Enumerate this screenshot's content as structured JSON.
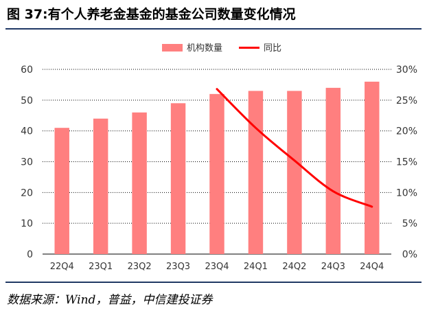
{
  "header": {
    "title": "图 37:有个人养老金基金的基金公司数量变化情况"
  },
  "footer": {
    "source": "数据来源：Wind，普益，中信建投证券"
  },
  "colors": {
    "bar": "#ff7f7f",
    "line": "#ff0000",
    "rule": "#1f3864",
    "grid": "#000000"
  },
  "chart_data": {
    "type": "bar",
    "categories": [
      "22Q4",
      "23Q1",
      "23Q2",
      "23Q3",
      "23Q4",
      "24Q1",
      "24Q2",
      "24Q3",
      "24Q4"
    ],
    "series": [
      {
        "name": "机构数量",
        "type": "bar",
        "axis": "left",
        "values": [
          41,
          44,
          46,
          49,
          52,
          53,
          53,
          54,
          56
        ]
      },
      {
        "name": "同比",
        "type": "line",
        "axis": "right",
        "values": [
          null,
          null,
          null,
          null,
          0.268,
          0.205,
          0.152,
          0.102,
          0.077
        ]
      }
    ],
    "y_left": {
      "min": 0,
      "max": 60,
      "ticks": [
        "0",
        "10",
        "20",
        "30",
        "40",
        "50",
        "60"
      ]
    },
    "y_right": {
      "min": 0,
      "max": 0.3,
      "ticks": [
        "0%",
        "5%",
        "10%",
        "15%",
        "20%",
        "25%",
        "30%"
      ]
    },
    "legend_position": "top-center",
    "grid": "horizontal dotted"
  }
}
